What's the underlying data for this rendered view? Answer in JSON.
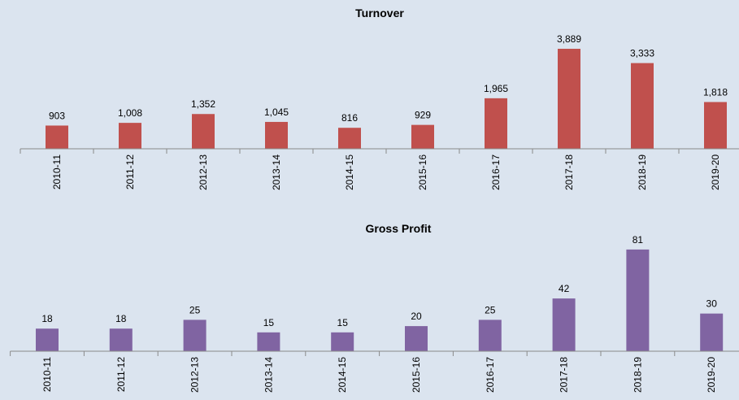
{
  "chart_data": [
    {
      "type": "bar",
      "title": "Turnover",
      "categories": [
        "2010-11",
        "2011-12",
        "2012-13",
        "2013-14",
        "2014-15",
        "2015-16",
        "2016-17",
        "2017-18",
        "2018-19",
        "2019-20"
      ],
      "values": [
        903,
        1008,
        1352,
        1045,
        816,
        929,
        1965,
        3889,
        3333,
        1818
      ],
      "value_labels": [
        "903",
        "1,008",
        "1,352",
        "1,045",
        "816",
        "929",
        "1,965",
        "3,889",
        "3,333",
        "1,818"
      ],
      "color": "#c0504d",
      "ylim": [
        0,
        4000
      ]
    },
    {
      "type": "bar",
      "title": "Gross Profit",
      "categories": [
        "2010-11",
        "2011-12",
        "2012-13",
        "2013-14",
        "2014-15",
        "2015-16",
        "2016-17",
        "2017-18",
        "2018-19",
        "2019-20"
      ],
      "values": [
        18,
        18,
        25,
        15,
        15,
        20,
        25,
        42,
        81,
        30
      ],
      "color": "#8064a2",
      "ylim": [
        0,
        90
      ]
    }
  ]
}
